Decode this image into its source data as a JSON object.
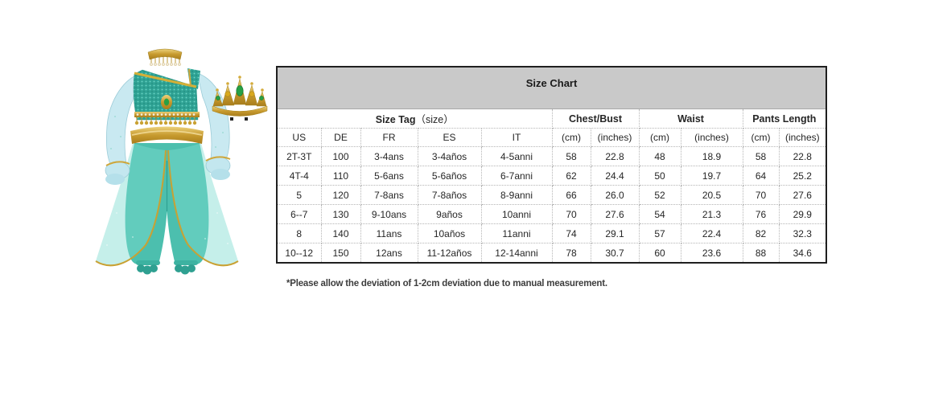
{
  "product": {
    "label": "teal princess costume with gold trim, sheer sleeves, harem pants and jeweled tiara",
    "colors": {
      "teal_top": "#2fa294",
      "teal_pants": "#4cbfae",
      "sheer_blue": "#c3e7ef",
      "gold": "#c79a2e",
      "gem_green": "#27a045",
      "gem_amber": "#d9a91f"
    }
  },
  "size_chart": {
    "title": "Size Chart",
    "size_tag_label": "Size Tag",
    "size_tag_suffix": "（size）",
    "group_headers": [
      "Chest/Bust",
      "Waist",
      "Pants Length"
    ],
    "columns": [
      "US",
      "DE",
      "FR",
      "ES",
      "IT",
      "(cm)",
      "(inches)",
      "(cm)",
      "(inches)",
      "(cm)",
      "(inches)"
    ],
    "rows": [
      [
        "2T-3T",
        "100",
        "3-4ans",
        "3-4años",
        "4-5anni",
        "58",
        "22.8",
        "48",
        "18.9",
        "58",
        "22.8"
      ],
      [
        "4T-4",
        "110",
        "5-6ans",
        "5-6años",
        "6-7anni",
        "62",
        "24.4",
        "50",
        "19.7",
        "64",
        "25.2"
      ],
      [
        "5",
        "120",
        "7-8ans",
        "7-8años",
        "8-9anni",
        "66",
        "26.0",
        "52",
        "20.5",
        "70",
        "27.6"
      ],
      [
        "6--7",
        "130",
        "9-10ans",
        "9años",
        "10anni",
        "70",
        "27.6",
        "54",
        "21.3",
        "76",
        "29.9"
      ],
      [
        "8",
        "140",
        "11ans",
        "10años",
        "11anni",
        "74",
        "29.1",
        "57",
        "22.4",
        "82",
        "32.3"
      ],
      [
        "10--12",
        "150",
        "12ans",
        "11-12años",
        "12-14anni",
        "78",
        "30.7",
        "60",
        "23.6",
        "88",
        "34.6"
      ]
    ],
    "footnote": "*Please allow the deviation of 1-2cm deviation due to manual measurement."
  },
  "theme": {
    "header_bg": "#c9c9c9",
    "outer_border": "#1f1f1f",
    "grid_line": "#b5b5b5",
    "text": "#262626",
    "footnote_text": "#3d3d3d"
  }
}
